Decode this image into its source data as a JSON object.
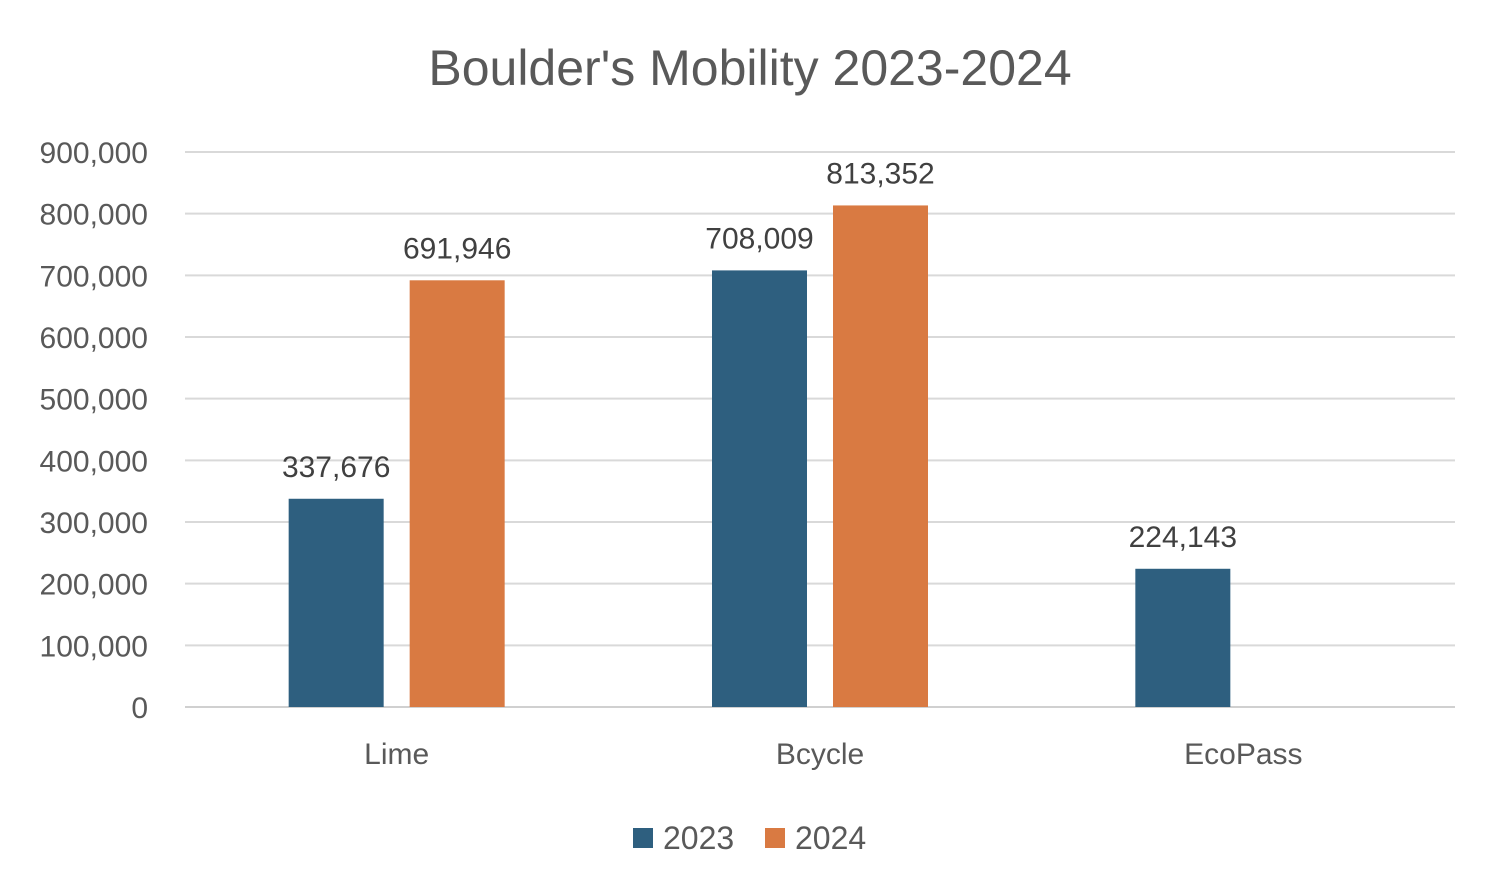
{
  "chart_data": {
    "type": "bar",
    "title": "Boulder's Mobility 2023-2024",
    "categories": [
      "Lime",
      "Bcycle",
      "EcoPass"
    ],
    "series": [
      {
        "name": "2023",
        "color": "#2e5f7f",
        "values": [
          337676,
          708009,
          224143
        ],
        "labels": [
          "337,676",
          "708,009",
          "224,143"
        ]
      },
      {
        "name": "2024",
        "color": "#d97a42",
        "values": [
          691946,
          813352,
          null
        ],
        "labels": [
          "691,946",
          "813,352",
          ""
        ]
      }
    ],
    "ylim": [
      0,
      900000
    ],
    "yticks": [
      0,
      100000,
      200000,
      300000,
      400000,
      500000,
      600000,
      700000,
      800000,
      900000
    ],
    "ytick_labels": [
      "0",
      "100,000",
      "200,000",
      "300,000",
      "400,000",
      "500,000",
      "600,000",
      "700,000",
      "800,000",
      "900,000"
    ],
    "xlabel": "",
    "ylabel": "",
    "grid": true,
    "legend": "bottom",
    "data_labels": true
  }
}
